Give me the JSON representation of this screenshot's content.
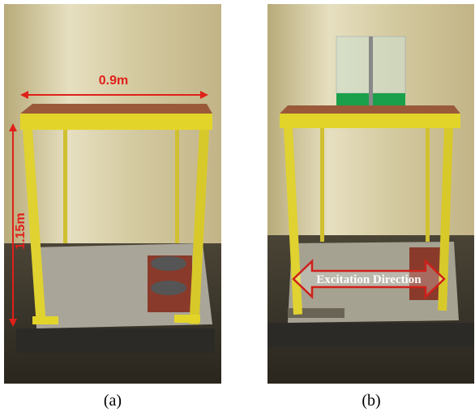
{
  "panels": [
    {
      "caption": "(a)",
      "annotations": [
        "0.9m",
        "1.15m"
      ]
    },
    {
      "caption": "(b)",
      "annotations": [
        "Excitation Direction"
      ]
    }
  ]
}
